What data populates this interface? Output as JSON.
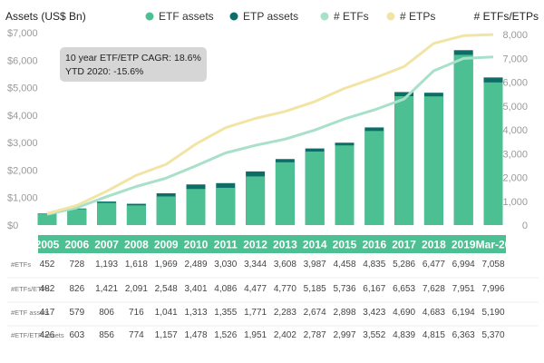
{
  "colors": {
    "etf_assets": "#4cbf93",
    "etp_assets": "#0e6e67",
    "num_etfs": "#a8e0c9",
    "num_etps": "#f2e4a4",
    "year_band": "#4cbf93",
    "note_box": "#d6d6d6"
  },
  "chart_data": {
    "type": "bar",
    "title_left": "Assets (US$ Bn)",
    "title_right": "# ETFs/ETPs",
    "categories": [
      "2005",
      "2006",
      "2007",
      "2008",
      "2009",
      "2010",
      "2011",
      "2012",
      "2013",
      "2014",
      "2015",
      "2016",
      "2017",
      "2018",
      "2019",
      "Mar-20"
    ],
    "legend": [
      "ETF assets",
      "ETP assets",
      "# ETFs",
      "# ETPs"
    ],
    "legend_position": "top",
    "ylim_left": [
      0,
      7000
    ],
    "ylim_right": [
      0,
      8000
    ],
    "yticks_left": [
      "$0",
      "$1,000",
      "$2,000",
      "$3,000",
      "$4,000",
      "$5,000",
      "$6,000",
      "$7,000"
    ],
    "yticks_right": [
      "0",
      "1,000",
      "2,000",
      "3,000",
      "4,000",
      "5,000",
      "6,000",
      "7,000",
      "8,000"
    ],
    "grid": false,
    "series": [
      {
        "name": "ETF assets",
        "type": "bar",
        "axis": "left",
        "values": [
          417,
          579,
          806,
          716,
          1041,
          1313,
          1355,
          1771,
          2283,
          2674,
          2898,
          3423,
          4690,
          4683,
          6194,
          5190
        ]
      },
      {
        "name": "ETP assets",
        "type": "bar",
        "axis": "left",
        "values": [
          426,
          603,
          856,
          774,
          1157,
          1478,
          1526,
          1951,
          2402,
          2787,
          2997,
          3552,
          4839,
          4815,
          6363,
          5370
        ]
      },
      {
        "name": "# ETFs",
        "type": "line",
        "axis": "right",
        "values": [
          452,
          728,
          1193,
          1618,
          1969,
          2489,
          3030,
          3344,
          3608,
          3987,
          4458,
          4835,
          5286,
          6477,
          6994,
          7058
        ]
      },
      {
        "name": "# ETPs",
        "type": "line",
        "axis": "right",
        "values": [
          482,
          826,
          1421,
          2091,
          2548,
          3401,
          4086,
          4477,
          4770,
          5185,
          5736,
          6167,
          6653,
          7628,
          7951,
          7996
        ]
      }
    ],
    "annotation": {
      "line1": "10 year ETF/ETP CAGR: 18.6%",
      "line2": "YTD 2020: -15.6%"
    },
    "table": {
      "rows": [
        {
          "label": "#ETFs",
          "values": [
            "452",
            "728",
            "1,193",
            "1,618",
            "1,969",
            "2,489",
            "3,030",
            "3,344",
            "3,608",
            "3,987",
            "4,458",
            "4,835",
            "5,286",
            "6,477",
            "6,994",
            "7,058"
          ]
        },
        {
          "label": "#ETFs/ETPs",
          "values": [
            "482",
            "826",
            "1,421",
            "2,091",
            "2,548",
            "3,401",
            "4,086",
            "4,477",
            "4,770",
            "5,185",
            "5,736",
            "6,167",
            "6,653",
            "7,628",
            "7,951",
            "7,996"
          ]
        },
        {
          "label": "#ETF assets",
          "values": [
            "417",
            "579",
            "806",
            "716",
            "1,041",
            "1,313",
            "1,355",
            "1,771",
            "2,283",
            "2,674",
            "2,898",
            "3,423",
            "4,690",
            "4,683",
            "6,194",
            "5,190"
          ]
        },
        {
          "label": "#ETF/ETP assets",
          "values": [
            "426",
            "603",
            "856",
            "774",
            "1,157",
            "1,478",
            "1,526",
            "1,951",
            "2,402",
            "2,787",
            "2,997",
            "3,552",
            "4,839",
            "4,815",
            "6,363",
            "5,370"
          ]
        }
      ]
    }
  }
}
